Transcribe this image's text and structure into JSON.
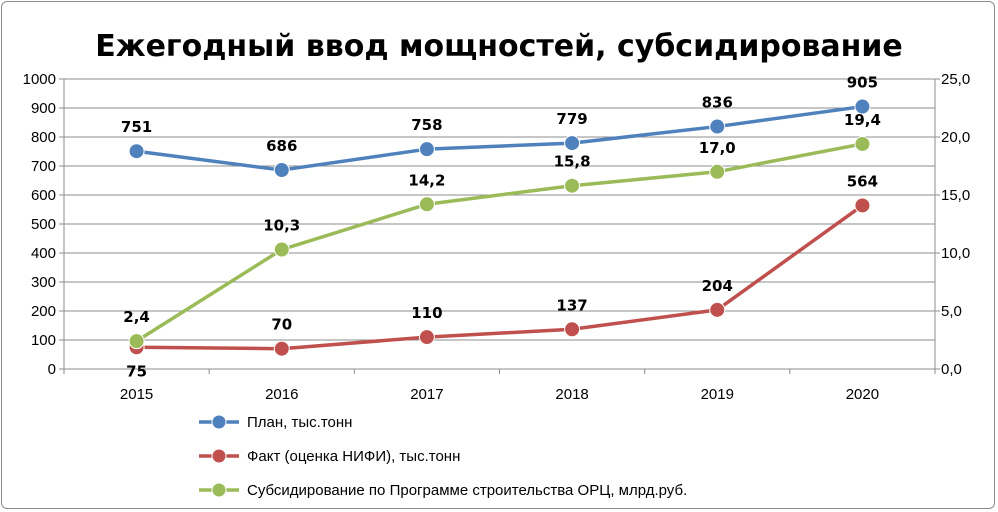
{
  "chart_data": {
    "type": "line",
    "title": "Ежегодный ввод мощностей, субсидирование",
    "categories": [
      "2015",
      "2016",
      "2017",
      "2018",
      "2019",
      "2020"
    ],
    "y_left": {
      "min": 0,
      "max": 1000,
      "step": 100,
      "ticks": [
        "0",
        "100",
        "200",
        "300",
        "400",
        "500",
        "600",
        "700",
        "800",
        "900",
        "1000"
      ]
    },
    "y_right": {
      "min": 0,
      "max": 25,
      "step": 5,
      "ticks": [
        "0,0",
        "5,0",
        "10,0",
        "15,0",
        "20,0",
        "25,0"
      ]
    },
    "grid": true,
    "legend_position": "bottom",
    "series": [
      {
        "name": "План, тыс.тонн",
        "axis": "left",
        "color": "#4f81bd",
        "values": [
          751,
          686,
          758,
          779,
          836,
          905
        ],
        "labels": [
          "751",
          "686",
          "758",
          "779",
          "836",
          "905"
        ],
        "label_pos": [
          "above",
          "above",
          "above",
          "above",
          "above",
          "above"
        ]
      },
      {
        "name": "Факт (оценка НИФИ), тыс.тонн",
        "axis": "left",
        "color": "#c0504d",
        "values": [
          75,
          70,
          110,
          137,
          204,
          564
        ],
        "labels": [
          "75",
          "70",
          "110",
          "137",
          "204",
          "564"
        ],
        "label_pos": [
          "below",
          "above",
          "above",
          "above",
          "above",
          "above"
        ]
      },
      {
        "name": "Субсидирование по Программе строительства ОРЦ, млрд.руб.",
        "axis": "right",
        "color": "#9bbb59",
        "values": [
          2.4,
          10.3,
          14.2,
          15.8,
          17.0,
          19.4
        ],
        "labels": [
          "2,4",
          "10,3",
          "14,2",
          "15,8",
          "17,0",
          "19,4"
        ],
        "label_pos": [
          "above",
          "above",
          "above",
          "above",
          "above",
          "above"
        ]
      }
    ]
  }
}
